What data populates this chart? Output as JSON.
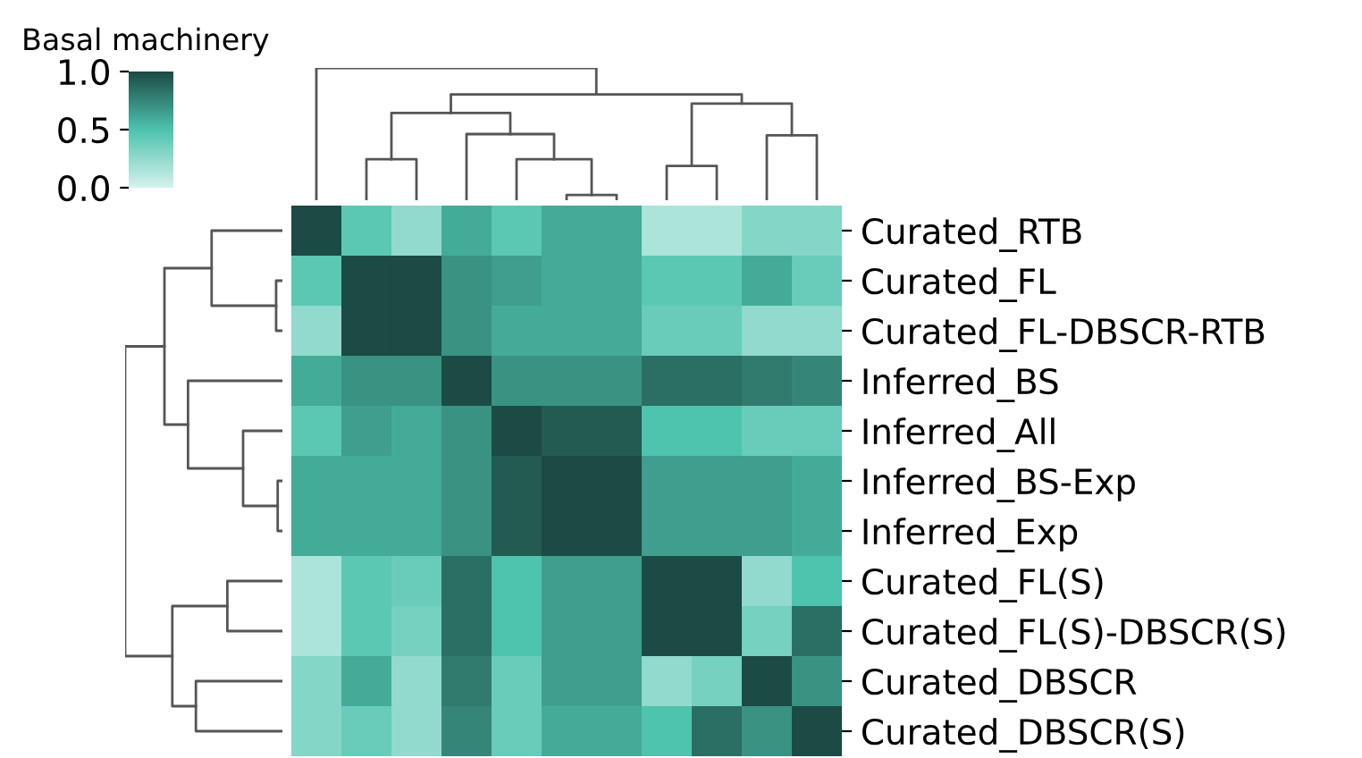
{
  "chart_data": {
    "type": "heatmap",
    "clabel": "Basal machinery",
    "categories": [
      null,
      null,
      null,
      null,
      null,
      null,
      null,
      null,
      null,
      null,
      null
    ],
    "y_categories": [
      "Curated_RTB",
      "Curated_FL",
      "Curated_FL-DBSCR-RTB",
      "Inferred_BS",
      "Inferred_All",
      "Inferred_BS-Exp",
      "Inferred_Exp",
      "Curated_FL(S)",
      "Curated_FL(S)-DBSCR(S)",
      "Curated_DBSCR",
      "Curated_DBSCR(S)"
    ],
    "cells": [
      [
        1.0,
        0.45,
        0.25,
        0.6,
        0.45,
        0.6,
        0.6,
        0.15,
        0.15,
        0.3,
        0.3
      ],
      [
        0.45,
        1.0,
        1.0,
        0.7,
        0.65,
        0.6,
        0.6,
        0.45,
        0.45,
        0.6,
        0.4
      ],
      [
        0.25,
        1.0,
        1.0,
        0.7,
        0.6,
        0.6,
        0.6,
        0.4,
        0.4,
        0.25,
        0.25
      ],
      [
        0.6,
        0.7,
        0.7,
        1.0,
        0.7,
        0.7,
        0.7,
        0.85,
        0.85,
        0.8,
        0.75
      ],
      [
        0.45,
        0.65,
        0.6,
        0.7,
        1.0,
        0.93,
        0.93,
        0.5,
        0.5,
        0.4,
        0.4
      ],
      [
        0.6,
        0.6,
        0.6,
        0.7,
        0.93,
        1.0,
        1.0,
        0.65,
        0.65,
        0.65,
        0.6
      ],
      [
        0.6,
        0.6,
        0.6,
        0.7,
        0.93,
        1.0,
        1.0,
        0.65,
        0.65,
        0.65,
        0.6
      ],
      [
        0.15,
        0.45,
        0.4,
        0.85,
        0.5,
        0.65,
        0.65,
        1.0,
        1.0,
        0.25,
        0.5
      ],
      [
        0.15,
        0.45,
        0.35,
        0.85,
        0.5,
        0.65,
        0.65,
        1.0,
        1.0,
        0.35,
        0.85
      ],
      [
        0.3,
        0.6,
        0.25,
        0.8,
        0.4,
        0.65,
        0.65,
        0.25,
        0.35,
        1.0,
        0.7
      ],
      [
        0.3,
        0.4,
        0.25,
        0.75,
        0.4,
        0.6,
        0.6,
        0.5,
        0.85,
        0.7,
        1.0
      ]
    ],
    "colors": [
      "#d4f2ec",
      "#4ec3ae",
      "#1c4a44"
    ],
    "clim": [
      0.0,
      1.0
    ],
    "cticks": [
      {
        "value": 0.0,
        "label": "0.0"
      },
      {
        "value": 0.5,
        "label": "0.5"
      },
      {
        "value": 1.0,
        "label": "1.0"
      }
    ]
  }
}
